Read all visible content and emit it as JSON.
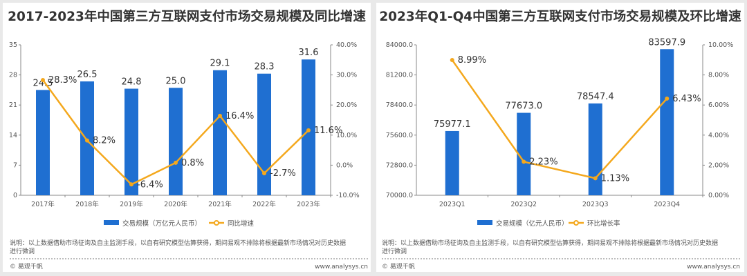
{
  "colors": {
    "bar": "#1f6fd1",
    "line": "#f4a81d",
    "axis": "#888"
  },
  "note": {
    "line1": "说明：以上数据借助市场征询及自主监测手段，以自有研究模型估算获得，期间易观不排除将根据最新市场情况对历史数据",
    "line2": "进行微调",
    "brand": "© 易观千帆",
    "url": "www.analysys.cn"
  },
  "chart_data": [
    {
      "type": "bar+line",
      "title": "2017-2023年中国第三方互联网支付市场交易规模及同比增速",
      "categories": [
        "2017年",
        "2018年",
        "2019年",
        "2020年",
        "2021年",
        "2022年",
        "2023年"
      ],
      "series": [
        {
          "name": "交易规模（万亿元人民币）",
          "type": "bar",
          "axis": "left",
          "values": [
            24.5,
            26.5,
            24.8,
            25.0,
            29.1,
            28.3,
            31.6
          ],
          "labels": [
            "24.5",
            "26.5",
            "24.8",
            "25.0",
            "29.1",
            "28.3",
            "31.6"
          ]
        },
        {
          "name": "同比增速",
          "type": "line",
          "axis": "right",
          "values": [
            28.3,
            8.2,
            -6.4,
            0.8,
            16.4,
            -2.7,
            11.6
          ],
          "labels": [
            "28.3%",
            "8.2%",
            "-6.4%",
            "0.8%",
            "16.4%",
            "-2.7%",
            "11.6%"
          ]
        }
      ],
      "ylim": [
        0,
        35
      ],
      "yticks": [
        "0",
        "7",
        "14",
        "21",
        "28",
        "35"
      ],
      "y2lim": [
        -10,
        40
      ],
      "y2ticks": [
        "-10.0%",
        "0.0%",
        "10.0%",
        "20.0%",
        "30.0%",
        "40.0%"
      ],
      "legend": "bottom"
    },
    {
      "type": "bar+line",
      "title": "2023年Q1-Q4中国第三方互联网支付市场交易规模及环比增速",
      "categories": [
        "2023Q1",
        "2023Q2",
        "2023Q3",
        "2023Q4"
      ],
      "series": [
        {
          "name": "交易规模（亿元人民币）",
          "type": "bar",
          "axis": "left",
          "values": [
            75977.1,
            77673.0,
            78547.4,
            83597.9
          ],
          "labels": [
            "75977.1",
            "77673.0",
            "78547.4",
            "83597.9"
          ]
        },
        {
          "name": "环比增长率",
          "type": "line",
          "axis": "right",
          "values": [
            8.99,
            2.23,
            1.13,
            6.43
          ],
          "labels": [
            "8.99%",
            "2.23%",
            "1.13%",
            "6.43%"
          ]
        }
      ],
      "ylim": [
        70000,
        84000
      ],
      "yticks": [
        "70000.0",
        "72800.0",
        "75600.0",
        "78400.0",
        "81200.0",
        "84000.0"
      ],
      "y2lim": [
        0,
        10
      ],
      "y2ticks": [
        "0.00%",
        "2.00%",
        "4.00%",
        "6.00%",
        "8.00%",
        "10.00%"
      ],
      "legend": "bottom"
    }
  ]
}
